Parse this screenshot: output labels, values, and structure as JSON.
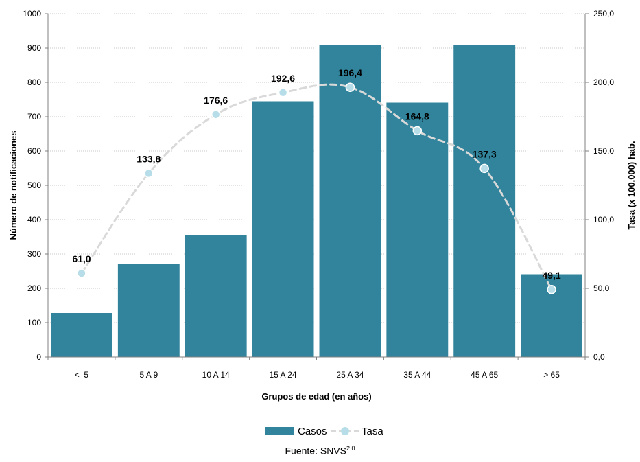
{
  "chart_data": {
    "type": "bar",
    "categories": [
      "<  5",
      "5 A 9",
      "10 A 14",
      "15 A 24",
      "25 A 34",
      "35 A 44",
      "45 A 65",
      "> 65"
    ],
    "series": [
      {
        "name": "Casos",
        "axis": "left",
        "kind": "bar",
        "color": "#31849B",
        "values": [
          128,
          272,
          355,
          745,
          908,
          741,
          908,
          241
        ]
      },
      {
        "name": "Tasa",
        "axis": "right",
        "kind": "line",
        "style": "dashed-smooth",
        "color": "#D9D9D9",
        "marker_color": "#B7DEE8",
        "values": [
          61.0,
          133.8,
          176.6,
          192.6,
          196.4,
          164.8,
          137.3,
          49.1
        ],
        "labels": [
          "61,0",
          "133,8",
          "176,6",
          "192,6",
          "196,4",
          "164,8",
          "137,3",
          "49,1"
        ]
      }
    ],
    "y_left": {
      "label": "Número de notificaciones",
      "ylim": [
        0,
        1000
      ],
      "ticks": [
        "0",
        "100",
        "200",
        "300",
        "400",
        "500",
        "600",
        "700",
        "800",
        "900",
        "1000"
      ]
    },
    "y_right": {
      "label": "Tasa (x 100.000) hab.",
      "ylim": [
        0,
        250
      ],
      "ticks": [
        "0,0",
        "50,0",
        "100,0",
        "150,0",
        "200,0",
        "250,0"
      ]
    },
    "xlabel": "Grupos de edad (en años)",
    "grid": "horizontal-dotted",
    "legend": {
      "position": "bottom",
      "items": [
        "Casos",
        "Tasa"
      ]
    }
  },
  "source": {
    "text": "Fuente: SNVS",
    "superscript": "2.0"
  }
}
